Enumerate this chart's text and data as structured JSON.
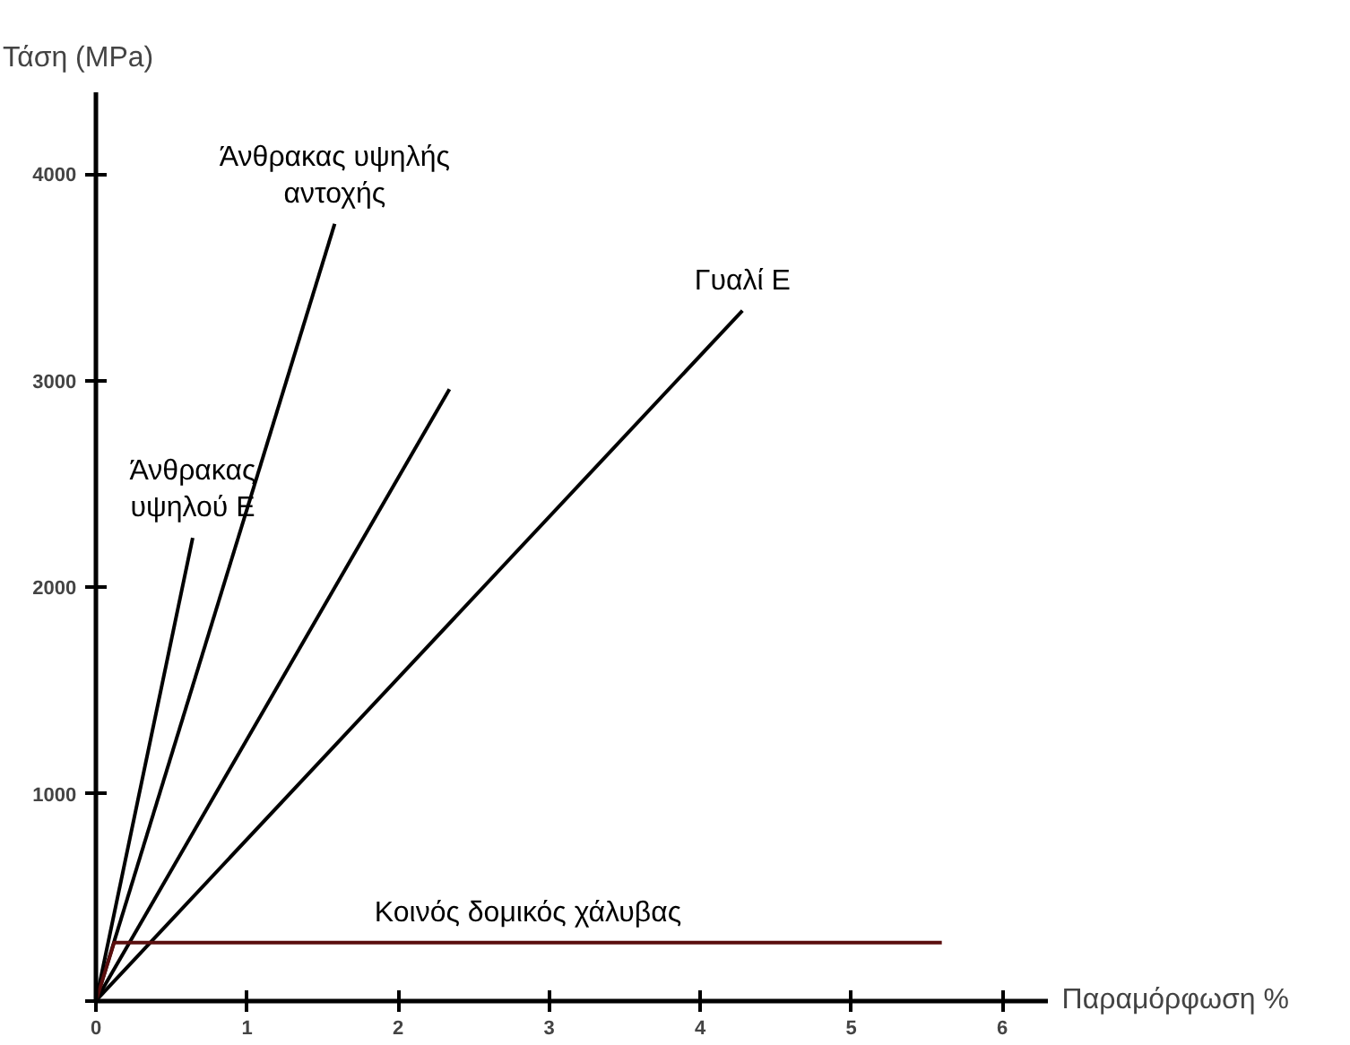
{
  "chart_data": {
    "type": "line",
    "xlabel": "Παραμόρφωση %",
    "ylabel": "Τάση (MPa)",
    "xlim": [
      0,
      6.3
    ],
    "ylim": [
      0,
      4400
    ],
    "xticks": [
      0,
      1,
      2,
      3,
      4,
      5,
      6
    ],
    "yticks": [
      {
        "value": 0,
        "label": null
      },
      1000,
      2000,
      3000,
      4000
    ],
    "grid": false,
    "line_style": "solid",
    "series": [
      {
        "name": "Άνθρακας\nυψηλού Ε",
        "x": [
          0,
          0.64
        ],
        "values": [
          0,
          2240
        ],
        "color": "#000000"
      },
      {
        "name": "Άνθρακας υψηλής\nαντοχής",
        "x": [
          0,
          1.58
        ],
        "values": [
          0,
          3760
        ],
        "color": "#000000"
      },
      {
        "x": [
          0,
          2.34
        ],
        "values": [
          0,
          2960
        ],
        "color": "#000000"
      },
      {
        "name": "Γυαλί Ε",
        "x": [
          0,
          4.28
        ],
        "values": [
          0,
          3340
        ],
        "color": "#000000"
      },
      {
        "name": "Κοινός δομικός χάλυβας",
        "x": [
          0,
          0.12,
          5.6
        ],
        "values": [
          0,
          280,
          280
        ],
        "color": "#5a0e0e"
      }
    ]
  }
}
